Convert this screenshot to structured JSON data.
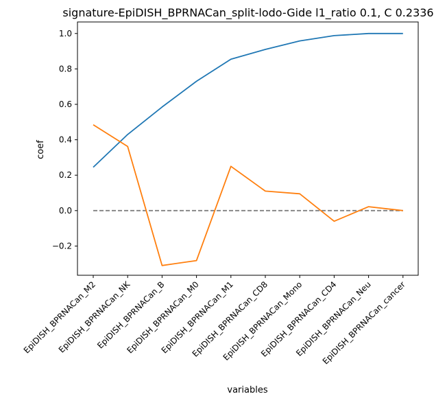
{
  "chart_data": {
    "type": "line",
    "title": "signature-EpiDISH_BPRNACan_split-lodo-Gide l1_ratio 0.1, C 0.2336",
    "xlabel": "variables",
    "ylabel": "coef",
    "categories": [
      "EpiDISH_BPRNACan_M2",
      "EpiDISH_BPRNACan_NK",
      "EpiDISH_BPRNACan_B",
      "EpiDISH_BPRNACan_M0",
      "EpiDISH_BPRNACan_M1",
      "EpiDISH_BPRNACan_CD8",
      "EpiDISH_BPRNACan_Mono",
      "EpiDISH_BPRNACan_CD4",
      "EpiDISH_BPRNACan_Neu",
      "EpiDISH_BPRNACan_cancer"
    ],
    "series": [
      {
        "color": "#1f77b4",
        "values": [
          0.245,
          0.43,
          0.585,
          0.73,
          0.855,
          0.91,
          0.958,
          0.988,
          1.0,
          1.0
        ]
      },
      {
        "color": "#ff7f0e",
        "values": [
          0.485,
          0.362,
          -0.31,
          -0.282,
          0.25,
          0.11,
          0.095,
          -0.06,
          0.022,
          0.0
        ]
      }
    ],
    "reference_line": {
      "y": 0.0,
      "style": "dashed",
      "color": "#808080"
    },
    "yticks": [
      -0.2,
      0.0,
      0.2,
      0.4,
      0.6,
      0.8,
      1.0
    ],
    "ytick_labels": [
      "−0.2",
      "0.0",
      "0.2",
      "0.4",
      "0.6",
      "0.8",
      "1.0"
    ],
    "ylim": [
      -0.365,
      1.065
    ],
    "grid": false,
    "legend": "none"
  }
}
